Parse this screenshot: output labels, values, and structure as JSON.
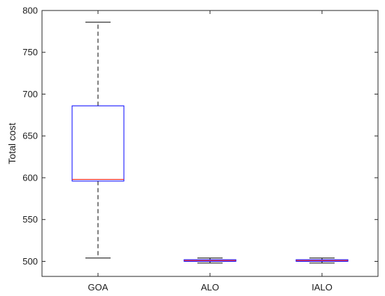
{
  "chart_data": {
    "type": "box",
    "xlabel": "",
    "ylabel": "Total cost",
    "ylim": [
      482,
      800
    ],
    "yticks": [
      500,
      550,
      600,
      650,
      700,
      750,
      800
    ],
    "categories": [
      "GOA",
      "ALO",
      "IALO"
    ],
    "boxes": [
      {
        "category": "GOA",
        "min": 504,
        "q1": 596,
        "median": 598,
        "q3": 686,
        "max": 786
      },
      {
        "category": "ALO",
        "min": 498,
        "q1": 500,
        "median": 501,
        "q3": 502,
        "max": 504
      },
      {
        "category": "IALO",
        "min": 498,
        "q1": 500,
        "median": 501,
        "q3": 502,
        "max": 504
      }
    ],
    "colors": {
      "box": "#0000ff",
      "median": "#ff0000",
      "whisker": "#000000",
      "axes": "#262626"
    },
    "grid": false
  }
}
